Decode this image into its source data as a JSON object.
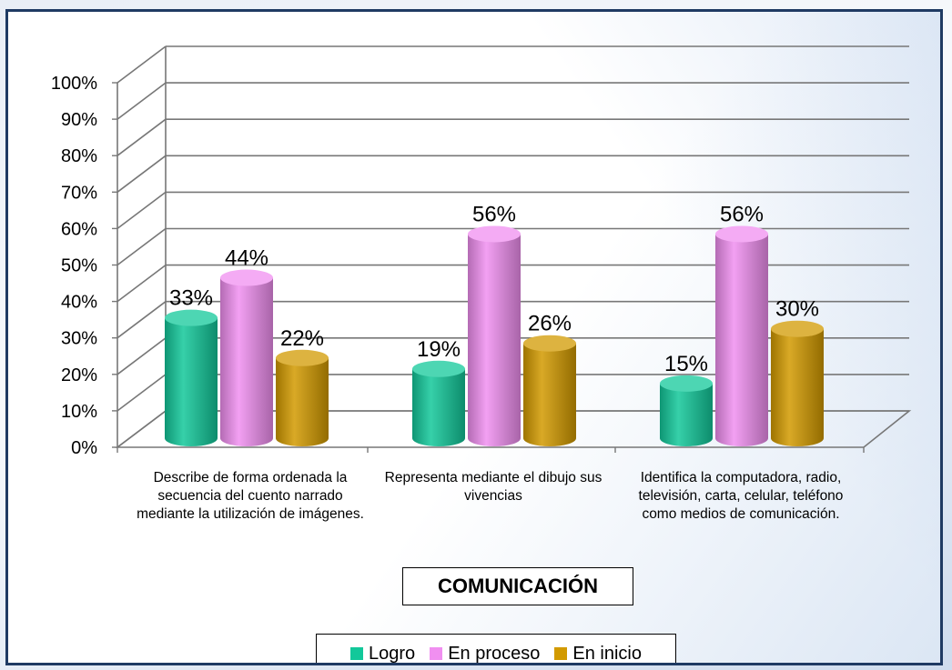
{
  "chart_data": {
    "type": "bar",
    "title": "COMUNICACIÓN",
    "categories": [
      "Describe de forma ordenada la secuencia del cuento narrado mediante la utilización de imágenes.",
      "Representa mediante el dibujo sus vivencias",
      "Identifica la computadora, radio, televisión, carta, celular, teléfono como medios de comunicación."
    ],
    "series": [
      {
        "name": "Logro",
        "values": [
          33,
          19,
          15
        ],
        "labels": [
          "33%",
          "19%",
          "15%"
        ],
        "color": "#12c89a"
      },
      {
        "name": "En proceso",
        "values": [
          44,
          56,
          56
        ],
        "labels": [
          "44%",
          "56%",
          "56%"
        ],
        "color": "#f08ff0"
      },
      {
        "name": "En inicio",
        "values": [
          22,
          26,
          30
        ],
        "labels": [
          "22%",
          "26%",
          "30%"
        ],
        "color": "#d29a00"
      }
    ],
    "y_ticks": [
      "0%",
      "10%",
      "20%",
      "30%",
      "40%",
      "50%",
      "60%",
      "70%",
      "80%",
      "90%",
      "100%"
    ],
    "ylim": [
      0,
      100
    ],
    "grid": true,
    "legend_position": "bottom"
  }
}
